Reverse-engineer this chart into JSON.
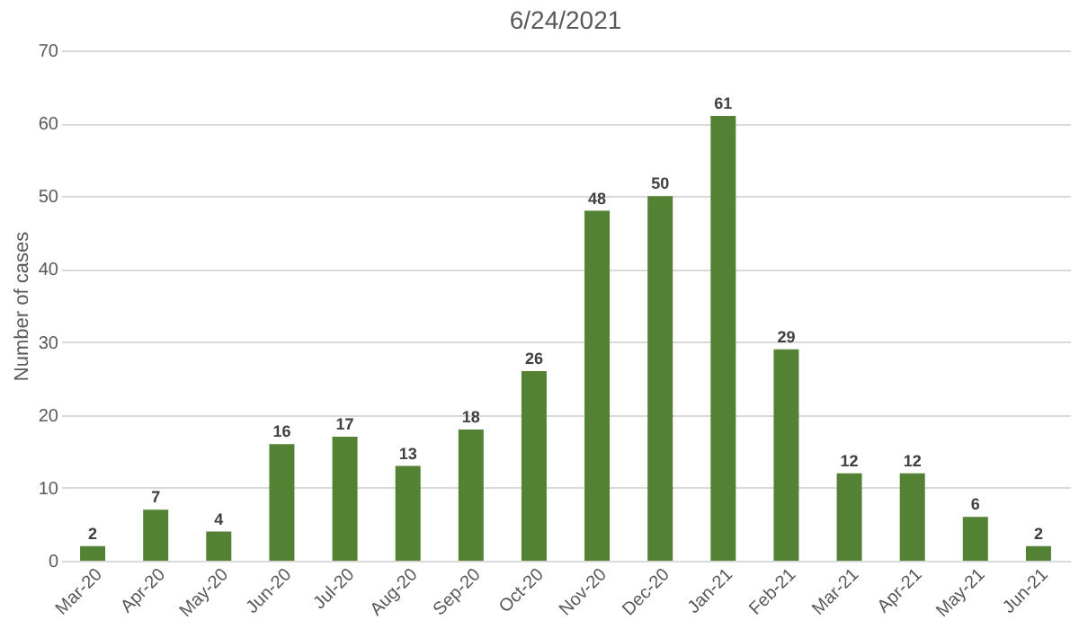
{
  "chart_data": {
    "type": "bar",
    "title": "6/24/2021",
    "ylabel": "Number of cases",
    "categories": [
      "Mar-20",
      "Apr-20",
      "May-20",
      "Jun-20",
      "Jul-20",
      "Aug-20",
      "Sep-20",
      "Oct-20",
      "Nov-20",
      "Dec-20",
      "Jan-21",
      "Feb-21",
      "Mar-21",
      "Apr-21",
      "May-21",
      "Jun-21"
    ],
    "values": [
      2,
      7,
      4,
      16,
      17,
      13,
      18,
      26,
      48,
      50,
      61,
      29,
      12,
      12,
      6,
      2
    ],
    "color": "#548235",
    "ylim": [
      0,
      70
    ],
    "yticks": [
      0,
      10,
      20,
      30,
      40,
      50,
      60,
      70
    ],
    "grid": "y",
    "data_labels": true
  }
}
